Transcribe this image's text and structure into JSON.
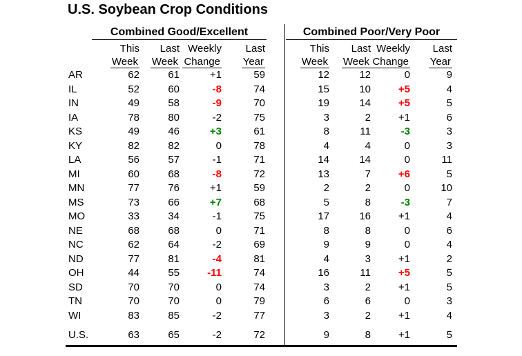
{
  "title": "U.S. Soybean Crop Conditions",
  "sections": {
    "good": "Combined Good/Excellent",
    "poor": "Combined Poor/Very Poor"
  },
  "columns": {
    "line1": [
      "This",
      "Last",
      "Weekly",
      "Last"
    ],
    "line2": [
      "Week",
      "Week",
      "Change",
      "Year"
    ]
  },
  "colors": {
    "text": "#000000",
    "background": "#ffffff",
    "bad_change": "#ff0000",
    "good_change": "#008000"
  },
  "rows": [
    {
      "state": "AR",
      "good": {
        "this_week": "62",
        "last_week": "61",
        "change": "+1",
        "change_style": "normal",
        "last_year": "59"
      },
      "poor": {
        "this_week": "12",
        "last_week": "12",
        "change": "0",
        "change_style": "normal",
        "last_year": "9"
      }
    },
    {
      "state": "IL",
      "good": {
        "this_week": "52",
        "last_week": "60",
        "change": "-8",
        "change_style": "red",
        "last_year": "74"
      },
      "poor": {
        "this_week": "15",
        "last_week": "10",
        "change": "+5",
        "change_style": "red",
        "last_year": "4"
      }
    },
    {
      "state": "IN",
      "good": {
        "this_week": "49",
        "last_week": "58",
        "change": "-9",
        "change_style": "red",
        "last_year": "70"
      },
      "poor": {
        "this_week": "19",
        "last_week": "14",
        "change": "+5",
        "change_style": "red",
        "last_year": "5"
      }
    },
    {
      "state": "IA",
      "good": {
        "this_week": "78",
        "last_week": "80",
        "change": "-2",
        "change_style": "normal",
        "last_year": "75"
      },
      "poor": {
        "this_week": "3",
        "last_week": "2",
        "change": "+1",
        "change_style": "normal",
        "last_year": "6"
      }
    },
    {
      "state": "KS",
      "good": {
        "this_week": "49",
        "last_week": "46",
        "change": "+3",
        "change_style": "green",
        "last_year": "61"
      },
      "poor": {
        "this_week": "8",
        "last_week": "11",
        "change": "-3",
        "change_style": "green",
        "last_year": "3"
      }
    },
    {
      "state": "KY",
      "good": {
        "this_week": "82",
        "last_week": "82",
        "change": "0",
        "change_style": "normal",
        "last_year": "78"
      },
      "poor": {
        "this_week": "4",
        "last_week": "4",
        "change": "0",
        "change_style": "normal",
        "last_year": "3"
      }
    },
    {
      "state": "LA",
      "good": {
        "this_week": "56",
        "last_week": "57",
        "change": "-1",
        "change_style": "normal",
        "last_year": "71"
      },
      "poor": {
        "this_week": "14",
        "last_week": "14",
        "change": "0",
        "change_style": "normal",
        "last_year": "11"
      }
    },
    {
      "state": "MI",
      "good": {
        "this_week": "60",
        "last_week": "68",
        "change": "-8",
        "change_style": "red",
        "last_year": "72"
      },
      "poor": {
        "this_week": "13",
        "last_week": "7",
        "change": "+6",
        "change_style": "red",
        "last_year": "5"
      }
    },
    {
      "state": "MN",
      "good": {
        "this_week": "77",
        "last_week": "76",
        "change": "+1",
        "change_style": "normal",
        "last_year": "59"
      },
      "poor": {
        "this_week": "2",
        "last_week": "2",
        "change": "0",
        "change_style": "normal",
        "last_year": "10"
      }
    },
    {
      "state": "MS",
      "good": {
        "this_week": "73",
        "last_week": "66",
        "change": "+7",
        "change_style": "green",
        "last_year": "68"
      },
      "poor": {
        "this_week": "5",
        "last_week": "8",
        "change": "-3",
        "change_style": "green",
        "last_year": "7"
      }
    },
    {
      "state": "MO",
      "good": {
        "this_week": "33",
        "last_week": "34",
        "change": "-1",
        "change_style": "normal",
        "last_year": "75"
      },
      "poor": {
        "this_week": "17",
        "last_week": "16",
        "change": "+1",
        "change_style": "normal",
        "last_year": "4"
      }
    },
    {
      "state": "NE",
      "good": {
        "this_week": "68",
        "last_week": "68",
        "change": "0",
        "change_style": "normal",
        "last_year": "71"
      },
      "poor": {
        "this_week": "8",
        "last_week": "8",
        "change": "0",
        "change_style": "normal",
        "last_year": "6"
      }
    },
    {
      "state": "NC",
      "good": {
        "this_week": "62",
        "last_week": "64",
        "change": "-2",
        "change_style": "normal",
        "last_year": "69"
      },
      "poor": {
        "this_week": "9",
        "last_week": "9",
        "change": "0",
        "change_style": "normal",
        "last_year": "4"
      }
    },
    {
      "state": "ND",
      "good": {
        "this_week": "77",
        "last_week": "81",
        "change": "-4",
        "change_style": "red",
        "last_year": "81"
      },
      "poor": {
        "this_week": "4",
        "last_week": "3",
        "change": "+1",
        "change_style": "normal",
        "last_year": "2"
      }
    },
    {
      "state": "OH",
      "good": {
        "this_week": "44",
        "last_week": "55",
        "change": "-11",
        "change_style": "red",
        "last_year": "74"
      },
      "poor": {
        "this_week": "16",
        "last_week": "11",
        "change": "+5",
        "change_style": "red",
        "last_year": "5"
      }
    },
    {
      "state": "SD",
      "good": {
        "this_week": "70",
        "last_week": "70",
        "change": "0",
        "change_style": "normal",
        "last_year": "74"
      },
      "poor": {
        "this_week": "3",
        "last_week": "2",
        "change": "+1",
        "change_style": "normal",
        "last_year": "5"
      }
    },
    {
      "state": "TN",
      "good": {
        "this_week": "70",
        "last_week": "70",
        "change": "0",
        "change_style": "normal",
        "last_year": "79"
      },
      "poor": {
        "this_week": "6",
        "last_week": "6",
        "change": "0",
        "change_style": "normal",
        "last_year": "3"
      }
    },
    {
      "state": "WI",
      "good": {
        "this_week": "83",
        "last_week": "85",
        "change": "-2",
        "change_style": "normal",
        "last_year": "77"
      },
      "poor": {
        "this_week": "3",
        "last_week": "2",
        "change": "+1",
        "change_style": "normal",
        "last_year": "4"
      }
    }
  ],
  "us_row": {
    "state": "U.S.",
    "good": {
      "this_week": "63",
      "last_week": "65",
      "change": "-2",
      "change_style": "normal",
      "last_year": "72"
    },
    "poor": {
      "this_week": "9",
      "last_week": "8",
      "change": "+1",
      "change_style": "normal",
      "last_year": "5"
    }
  }
}
